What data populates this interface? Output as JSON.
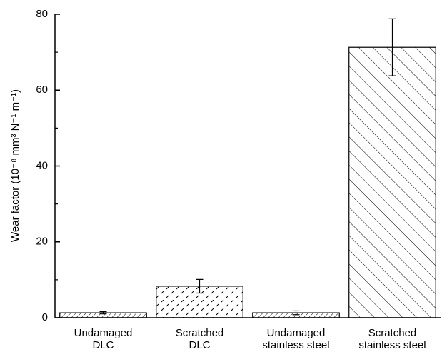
{
  "chart_data": {
    "type": "bar",
    "y_label": "Wear factor (10⁻⁸ mm³ N⁻¹ m⁻¹)",
    "categories": [
      [
        "Undamaged",
        "DLC"
      ],
      [
        "Scratched",
        "DLC"
      ],
      [
        "Undamaged",
        "stainless steel"
      ],
      [
        "Scratched",
        "stainless steel"
      ]
    ],
    "values": [
      1.3,
      8.3,
      1.3,
      71.3
    ],
    "errors": [
      0.3,
      1.8,
      0.5,
      7.5
    ],
    "color": "#000000",
    "ylim": [
      0,
      80
    ],
    "yticks": [
      0,
      20,
      40,
      60,
      80
    ],
    "yticks_minor": [
      10,
      30,
      50,
      70
    ]
  }
}
